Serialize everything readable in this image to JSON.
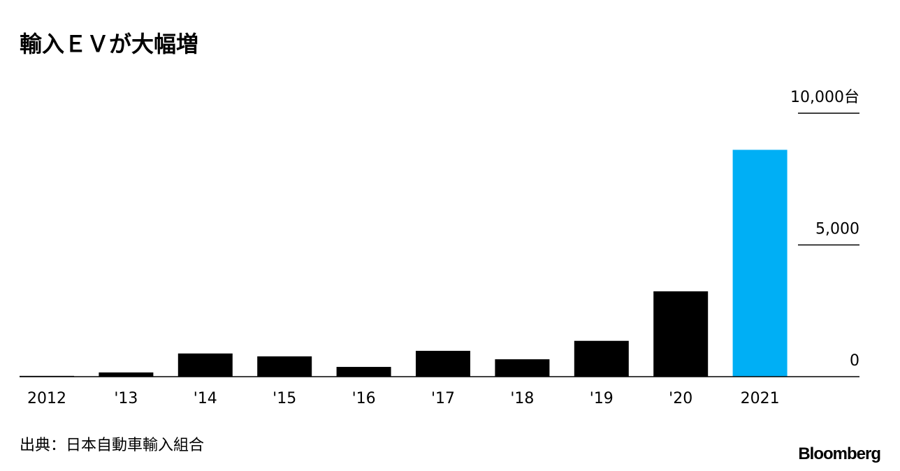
{
  "chart_data": {
    "type": "bar",
    "title": "輸入ＥＶが大幅増",
    "categories": [
      "2012",
      "'13",
      "'14",
      "'15",
      "'16",
      "'17",
      "'18",
      "'19",
      "'20",
      "2021"
    ],
    "values": [
      30,
      160,
      880,
      770,
      370,
      980,
      660,
      1360,
      3240,
      8610
    ],
    "colors": [
      "#000000",
      "#000000",
      "#000000",
      "#000000",
      "#000000",
      "#000000",
      "#000000",
      "#000000",
      "#000000",
      "#00aff5"
    ],
    "ylim": [
      0,
      10000
    ],
    "yticks": [
      0,
      {
        "value": 5000,
        "label": "5,000"
      },
      {
        "value": 10000,
        "label": "10,000台"
      }
    ],
    "y_axis_side": "right",
    "source": "出典：日本自動車輸入組合",
    "brand": "Bloomberg"
  }
}
